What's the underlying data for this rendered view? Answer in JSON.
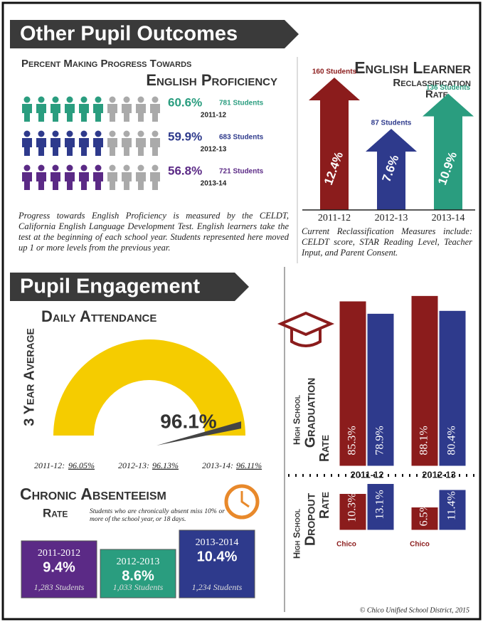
{
  "header1": "Other Pupil Outcomes",
  "progress": {
    "title_line1": "Percent Making Progress Towards",
    "title_line2": "English Proficiency",
    "rows": [
      {
        "value": 60.6,
        "label": "60.6%",
        "students": "781 Students",
        "year": "2011-12",
        "color": "#2a9d7f"
      },
      {
        "value": 59.9,
        "label": "59.9%",
        "students": "683 Students",
        "year": "2012-13",
        "color": "#2e3a8c"
      },
      {
        "value": 56.8,
        "label": "56.8%",
        "students": "721 Students",
        "year": "2013-14",
        "color": "#5b2a86"
      }
    ],
    "note": "Progress towards English Proficiency is measured by the CELDT, California English Language Development Test. English learners take the test at the beginning of each school year. Students represented here moved up 1 or more levels from the previous year."
  },
  "reclass": {
    "title_line1": "English Learner",
    "title_line2": "Reclassification",
    "title_line3": "Rate",
    "bars": [
      {
        "year": "2011-12",
        "value": 12.4,
        "label": "12.4%",
        "students": "160 Students",
        "color": "#8b1c1c"
      },
      {
        "year": "2012-13",
        "value": 7.6,
        "label": "7.6%",
        "students": "87 Students",
        "color": "#2e3a8c"
      },
      {
        "year": "2013-14",
        "value": 10.9,
        "label": "10.9%",
        "students": "136 Students",
        "color": "#2a9d7f"
      }
    ],
    "note": "Current Reclassification Measures include: CELDT score, STAR Reading Level, Teacher Input, and Parent Consent."
  },
  "header2": "Pupil Engagement",
  "attendance": {
    "title": "Daily Attendance",
    "side": "3 Year Average",
    "value": 96.1,
    "label": "96.1%",
    "years": [
      {
        "year": "2011-12:",
        "value": "96.05%"
      },
      {
        "year": "2012-13:",
        "value": "96.13%"
      },
      {
        "year": "2013-14:",
        "value": "96.11%"
      }
    ]
  },
  "graduation": {
    "side_line1": "High School",
    "side_line2": "Graduation",
    "side_line3": "Rate",
    "groups": [
      {
        "year": "2011-12",
        "bars": [
          {
            "value": 85.3,
            "label": "85.3%"
          },
          {
            "value": 78.9,
            "label": "78.9%"
          }
        ]
      },
      {
        "year": "2012-13",
        "bars": [
          {
            "value": 88.1,
            "label": "88.1%"
          },
          {
            "value": 80.4,
            "label": "80.4%"
          }
        ]
      }
    ]
  },
  "dropout": {
    "side_line1": "High School",
    "side_line2": "Dropout",
    "side_line3": "Rate",
    "groups": [
      {
        "bars": [
          {
            "value": 10.3,
            "label": "10.3%"
          },
          {
            "value": 13.1,
            "label": "13.1%"
          }
        ]
      },
      {
        "bars": [
          {
            "value": 6.5,
            "label": "6.5%"
          },
          {
            "value": 11.4,
            "label": "11.4%"
          }
        ]
      }
    ],
    "logo": "Chico"
  },
  "absentee": {
    "title_line1": "Chronic Absenteeism",
    "title_line2": "Rate",
    "note": "Students who are chronically absent miss 10% or more of the school year, or 18 days.",
    "boxes": [
      {
        "year": "2011-2012",
        "label": "9.4%",
        "students": "1,283 Students",
        "color": "#5b2a86"
      },
      {
        "year": "2012-2013",
        "label": "8.6%",
        "students": "1,033 Students",
        "color": "#2a9d7f"
      },
      {
        "year": "2013-2014",
        "label": "10.4%",
        "students": "1,234 Students",
        "color": "#2e3a8c"
      }
    ]
  },
  "footer": "© Chico Unified School District, 2015"
}
